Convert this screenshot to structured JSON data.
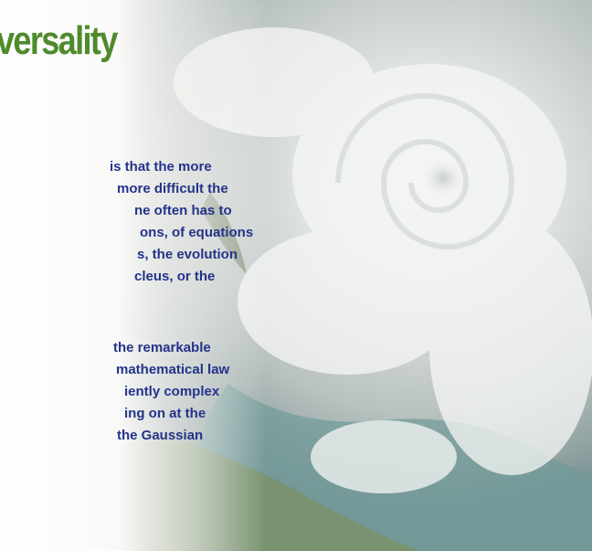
{
  "title": "versality",
  "paragraphs": [
    [
      "is that the more",
      "more difficult the",
      "ne often has to",
      "ons, of equations",
      "s, the evolution",
      "cleus, or the"
    ],
    [
      "the remarkable",
      "mathematical law",
      "iently complex",
      "ing on at the",
      "the Gaussian"
    ]
  ]
}
